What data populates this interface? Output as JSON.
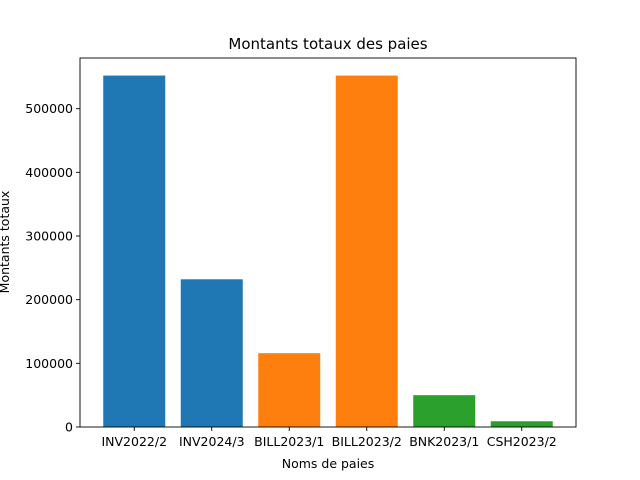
{
  "chart_data": {
    "type": "bar",
    "title": "Montants totaux des paies",
    "xlabel": "Noms de paies",
    "ylabel": "Montants totaux",
    "categories": [
      "INV2022/2",
      "INV2024/3",
      "BILL2023/1",
      "BILL2023/2",
      "BNK2023/1",
      "CSH2023/2"
    ],
    "values": [
      552000,
      232000,
      116000,
      552000,
      50000,
      9000
    ],
    "bar_colors": [
      "#1f77b4",
      "#1f77b4",
      "#ff7f0e",
      "#ff7f0e",
      "#2ca02c",
      "#2ca02c"
    ],
    "ylim": [
      0,
      579600
    ],
    "yticks": [
      0,
      100000,
      200000,
      300000,
      400000,
      500000
    ],
    "ytick_labels": [
      "0",
      "100000",
      "200000",
      "300000",
      "400000",
      "500000"
    ],
    "grid": false,
    "legend": "none"
  }
}
